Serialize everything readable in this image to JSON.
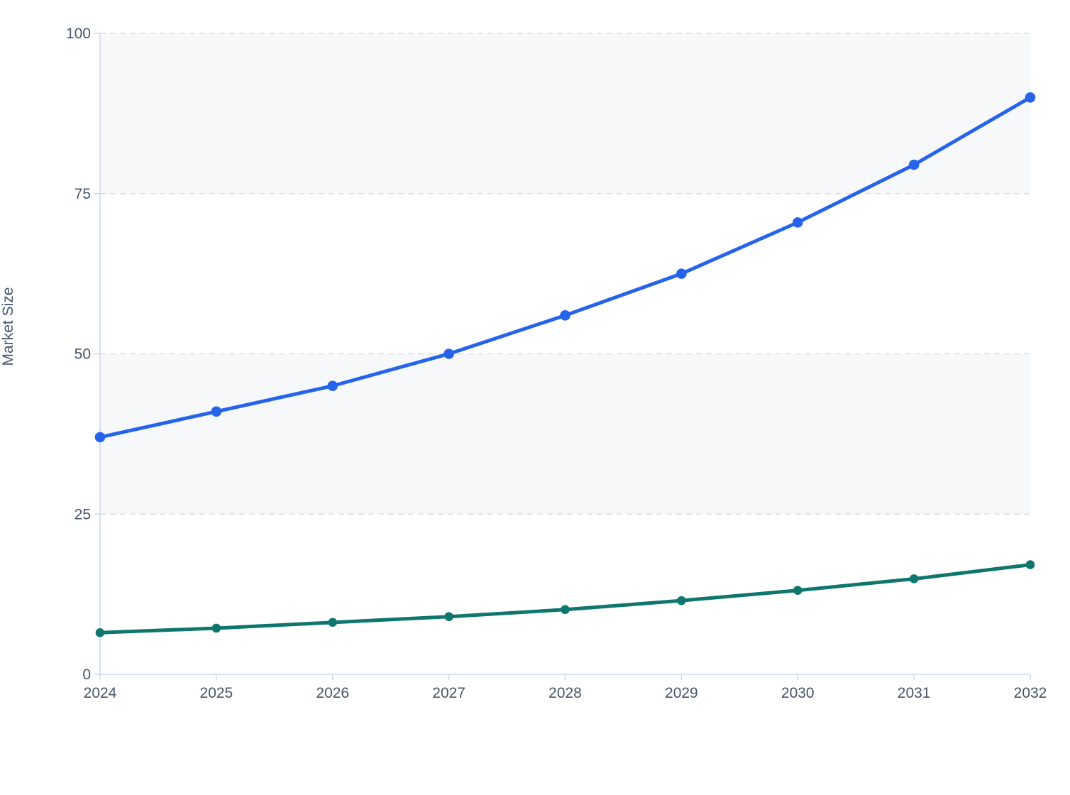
{
  "chart_data": {
    "type": "line",
    "title": "",
    "subtitle": "",
    "xlabel": "",
    "ylabel": "Market Size",
    "legend": "none",
    "grid": "horizontal-dashed",
    "x_categories": [
      "2024",
      "2025",
      "2026",
      "2027",
      "2028",
      "2029",
      "2030",
      "2031",
      "2032"
    ],
    "y_ticks": [
      0,
      25,
      50,
      75,
      100
    ],
    "ylim": [
      0,
      100
    ],
    "plot_bands": [
      {
        "from": 75,
        "to": 100
      },
      {
        "from": 25,
        "to": 50
      }
    ],
    "series": [
      {
        "id": "series-1",
        "color": "#2563eb",
        "marker": "circle",
        "values": [
          37,
          41,
          45,
          50,
          56,
          62.5,
          70.5,
          79.5,
          90
        ]
      },
      {
        "id": "series-2",
        "color": "#0f766e",
        "marker": "circle",
        "values": [
          6.5,
          7.2,
          8.1,
          9,
          10.1,
          11.5,
          13.1,
          14.9,
          17.1
        ]
      }
    ],
    "colors": {
      "plot_band_fill": "#f6f8fa",
      "gridline": "#d9dce1",
      "axis_line": "#ccd6eb",
      "tick_text": "#475569",
      "axis_title_text": "#46566b",
      "background": "#ffffff"
    }
  }
}
